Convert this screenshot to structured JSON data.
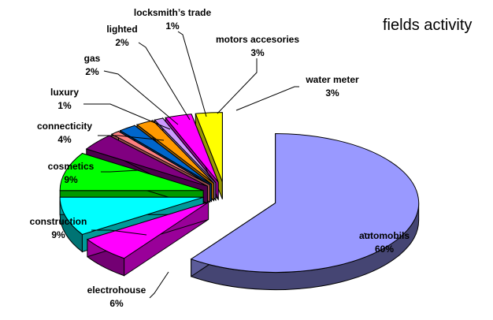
{
  "chart_data": {
    "type": "pie",
    "title": "fields activity",
    "three_d": true,
    "exploded": true,
    "legend": "none",
    "grid": false,
    "slices": [
      {
        "name": "automobils",
        "value": 60,
        "label": "60%",
        "color": "#9999ff"
      },
      {
        "name": "electrohouse",
        "value": 6,
        "label": "6%",
        "color": "#ff00ff"
      },
      {
        "name": "construction",
        "value": 9,
        "label": "9%",
        "color": "#00ffff"
      },
      {
        "name": "cosmetics",
        "value": 9,
        "label": "9%",
        "color": "#00ff00"
      },
      {
        "name": "connecticity",
        "value": 4,
        "label": "4%",
        "color": "#800080"
      },
      {
        "name": "luxury",
        "value": 1,
        "label": "1%",
        "color": "#ff8080"
      },
      {
        "name": "gas",
        "value": 2,
        "label": "2%",
        "color": "#0066cc"
      },
      {
        "name": "lighted",
        "value": 2,
        "label": "2%",
        "color": "#ff9900"
      },
      {
        "name": "locksmith’s trade",
        "value": 1,
        "label": "1%",
        "color": "#cc99ff"
      },
      {
        "name": "motors accesories",
        "value": 3,
        "label": "3%",
        "color": "#ff00ff"
      },
      {
        "name": "water meter",
        "value": 3,
        "label": "3%",
        "color": "#ffff00"
      }
    ]
  }
}
